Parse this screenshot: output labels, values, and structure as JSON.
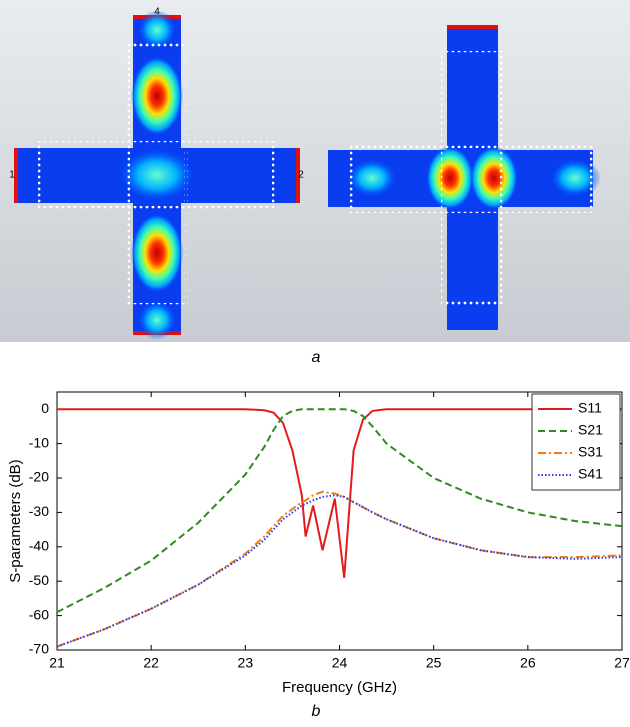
{
  "figure_a": {
    "caption": "a",
    "port_labels": [
      "1",
      "2",
      "4"
    ]
  },
  "chart_data": {
    "type": "line",
    "xlabel": "Frequency (GHz)",
    "ylabel": "S-parameters (dB)",
    "x": [
      21,
      21.5,
      22,
      22.5,
      23,
      23.2,
      23.3,
      23.4,
      23.5,
      23.6,
      23.64,
      23.72,
      23.82,
      23.95,
      24.05,
      24.15,
      24.25,
      24.35,
      24.5,
      25,
      25.5,
      26,
      26.5,
      27
    ],
    "series": [
      {
        "name": "S11",
        "color": "#e31a1c",
        "dash": "solid",
        "values": [
          0,
          0,
          0,
          0,
          0,
          -0.3,
          -1,
          -4,
          -12,
          -25,
          -37,
          -28,
          -41,
          -26,
          -49,
          -12,
          -3,
          -0.5,
          0,
          0,
          0,
          0,
          0,
          0
        ]
      },
      {
        "name": "S21",
        "color": "#2e8b1e",
        "dash": "dashed",
        "values": [
          -59,
          -52,
          -44,
          -33,
          -19,
          -11,
          -6,
          -2,
          -0.5,
          0,
          0,
          0,
          0,
          0,
          0,
          -0.5,
          -2,
          -5,
          -10,
          -20,
          -26,
          -30,
          -32.5,
          -34
        ]
      },
      {
        "name": "S31",
        "color": "#f07b12",
        "dash": "dashdot",
        "values": [
          -69,
          -64,
          -58,
          -51,
          -42,
          -37,
          -34,
          -31,
          -29,
          -27,
          -26.5,
          -25,
          -24,
          -24.5,
          -25.5,
          -27,
          -28.5,
          -30,
          -32,
          -37.5,
          -41,
          -43,
          -43,
          -42.5
        ]
      },
      {
        "name": "S41",
        "color": "#2a3fe0",
        "dash": "dotted",
        "values": [
          -69,
          -64,
          -58,
          -51,
          -42.5,
          -38,
          -35,
          -32,
          -30,
          -28,
          -27.5,
          -26.5,
          -25.5,
          -25,
          -25.5,
          -27,
          -28.5,
          -30,
          -32,
          -37.5,
          -41,
          -43,
          -43.5,
          -43
        ]
      }
    ],
    "xlim": [
      21,
      27
    ],
    "ylim": [
      -70,
      5
    ],
    "xticks": [
      21,
      22,
      23,
      24,
      25,
      26,
      27
    ],
    "yticks": [
      -70,
      -60,
      -50,
      -40,
      -30,
      -20,
      -10,
      0
    ],
    "legend": "top-right"
  },
  "caption_b": "b"
}
